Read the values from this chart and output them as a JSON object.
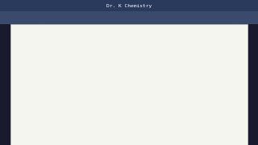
{
  "bg_color": "#1a1a2e",
  "paper_color": "#f5f5f0",
  "title_bar_color": "#2a3a5c",
  "toolbar_color": "#3a4a6c",
  "title_text": "Dr. K Chemistry",
  "colors": {
    "black": "#1a1a1a",
    "purple": "#800080",
    "blue": "#000080",
    "green_circle": "#90EE90",
    "yellow_circle": "#FFFF00"
  }
}
